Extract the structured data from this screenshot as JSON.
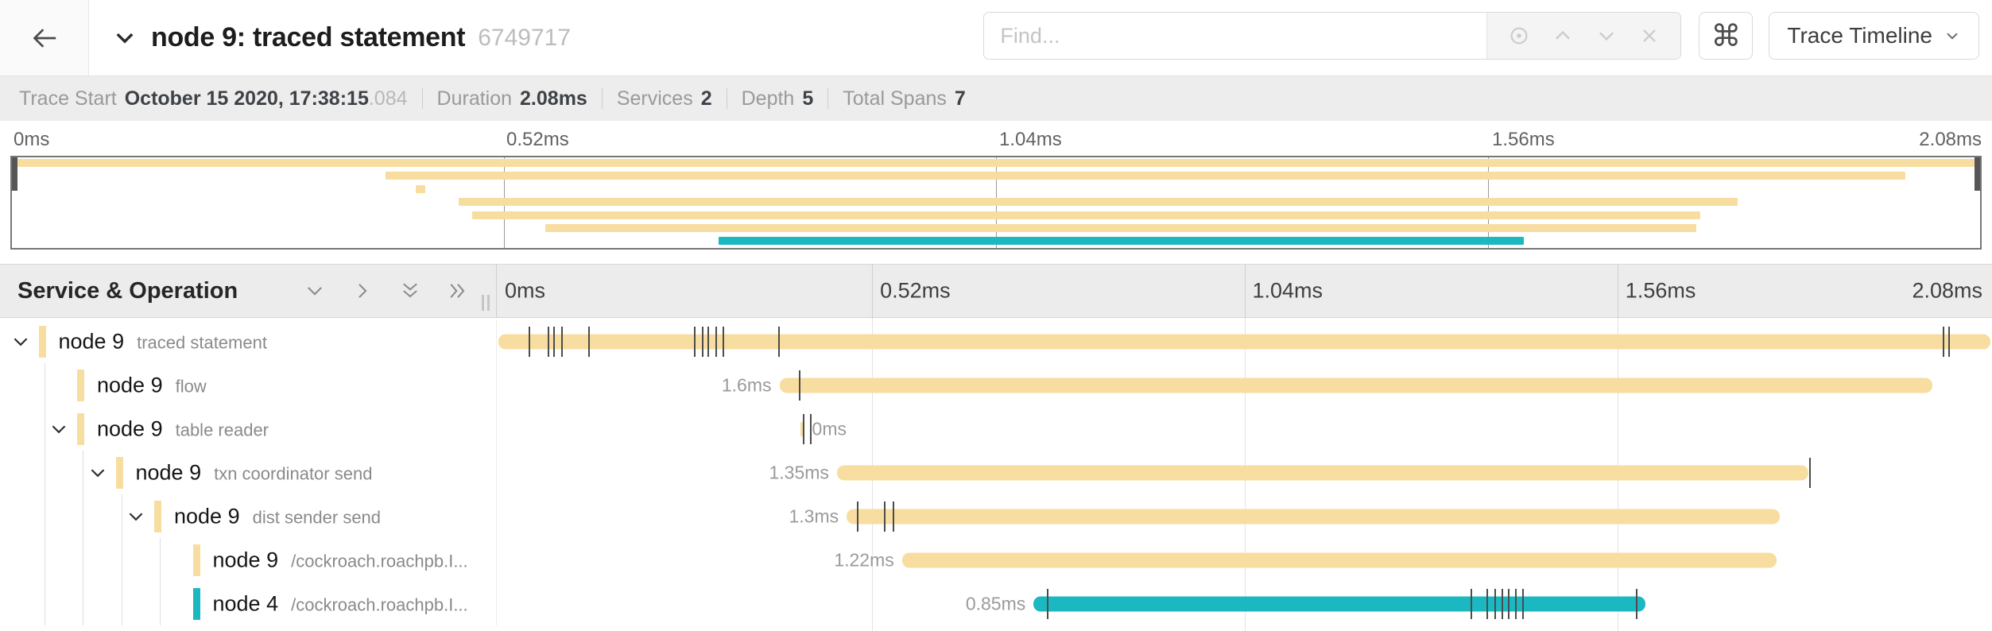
{
  "header": {
    "title": "node 9: traced statement",
    "trace_id": "6749717",
    "search": {
      "placeholder": "Find..."
    },
    "view_selector_label": "Trace Timeline",
    "icons": {
      "back": "arrow-left",
      "title_toggle": "chevron-down",
      "search_group": [
        "locate",
        "chevron-up",
        "chevron-down",
        "close-x"
      ],
      "shortcuts": "command-key",
      "view_selector": "chevron-down"
    }
  },
  "summary": {
    "items": [
      {
        "label": "Trace Start",
        "value": "October 15 2020, 17:38:15",
        "suffix": ".084"
      },
      {
        "label": "Duration",
        "value": "2.08ms"
      },
      {
        "label": "Services",
        "value": "2"
      },
      {
        "label": "Depth",
        "value": "5"
      },
      {
        "label": "Total Spans",
        "value": "7"
      }
    ]
  },
  "colors": {
    "tan": "#F8DDA0",
    "teal": "#1CB8C2"
  },
  "minimap": {
    "axis_labels": [
      "0ms",
      "0.52ms",
      "1.04ms",
      "1.56ms",
      "2.08ms"
    ],
    "spans": [
      {
        "left_pct": 0.0,
        "width_pct": 100.0,
        "color": "tan"
      },
      {
        "left_pct": 19.0,
        "width_pct": 77.2,
        "color": "tan"
      },
      {
        "left_pct": 20.5,
        "width_pct": 0.5,
        "color": "tan"
      },
      {
        "left_pct": 22.7,
        "width_pct": 65.0,
        "color": "tan"
      },
      {
        "left_pct": 23.4,
        "width_pct": 62.4,
        "color": "tan"
      },
      {
        "left_pct": 27.1,
        "width_pct": 58.5,
        "color": "tan"
      },
      {
        "left_pct": 35.9,
        "width_pct": 40.9,
        "color": "teal"
      }
    ]
  },
  "timeline": {
    "left_header": "Service & Operation",
    "axis_labels": [
      "0ms",
      "0.52ms",
      "1.04ms",
      "1.56ms",
      "2.08ms"
    ],
    "rows": [
      {
        "service": "node 9",
        "operation": "traced statement",
        "level": 0,
        "expandable": true,
        "color": "tan",
        "duration_label": "",
        "label_side": "left",
        "bar_left_pct": 0.1,
        "bar_width_pct": 99.8,
        "tick_pcts": [
          2.1,
          3.4,
          3.8,
          4.3,
          6.1,
          13.2,
          13.7,
          14.1,
          14.6,
          15.1,
          18.8,
          96.7,
          97.1
        ]
      },
      {
        "service": "node 9",
        "operation": "flow",
        "level": 1,
        "expandable": false,
        "color": "tan",
        "duration_label": "1.6ms",
        "label_side": "left",
        "bar_left_pct": 18.9,
        "bar_width_pct": 77.1,
        "tick_pcts": [
          20.2
        ]
      },
      {
        "service": "node 9",
        "operation": "table reader",
        "level": 1,
        "expandable": true,
        "color": "tan",
        "duration_label": "0ms",
        "label_side": "right",
        "bar_left_pct": 20.3,
        "bar_width_pct": 0.25,
        "tick_pcts": [
          20.45,
          20.95
        ]
      },
      {
        "service": "node 9",
        "operation": "txn coordinator send",
        "level": 2,
        "expandable": true,
        "color": "tan",
        "duration_label": "1.35ms",
        "label_side": "left",
        "bar_left_pct": 22.75,
        "bar_width_pct": 64.95,
        "tick_pcts": [
          87.75
        ]
      },
      {
        "service": "node 9",
        "operation": "dist sender send",
        "level": 3,
        "expandable": true,
        "color": "tan",
        "duration_label": "1.3ms",
        "label_side": "left",
        "bar_left_pct": 23.4,
        "bar_width_pct": 62.4,
        "tick_pcts": [
          24.1,
          25.9,
          26.5
        ]
      },
      {
        "service": "node 9",
        "operation": "/cockroach.roachpb.I...",
        "level": 4,
        "expandable": false,
        "color": "tan",
        "duration_label": "1.22ms",
        "label_side": "left",
        "bar_left_pct": 27.1,
        "bar_width_pct": 58.5,
        "tick_pcts": []
      },
      {
        "service": "node 4",
        "operation": "/cockroach.roachpb.I...",
        "level": 4,
        "expandable": false,
        "color": "teal",
        "duration_label": "0.85ms",
        "label_side": "left",
        "bar_left_pct": 35.9,
        "bar_width_pct": 40.9,
        "tick_pcts": [
          36.8,
          65.1,
          66.2,
          66.7,
          67.2,
          67.6,
          68.1,
          68.6,
          76.2
        ]
      }
    ]
  }
}
